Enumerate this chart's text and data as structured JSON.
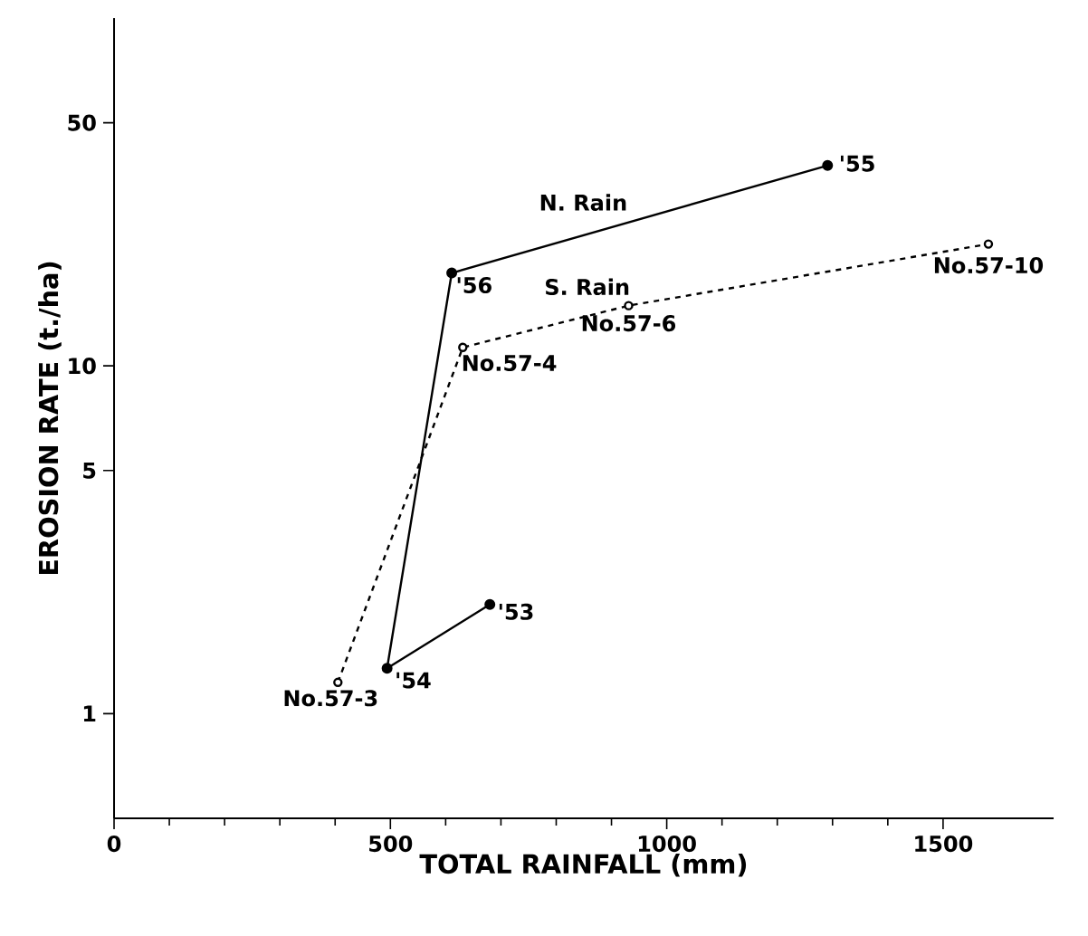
{
  "chart_data": {
    "type": "line",
    "xlabel": "TOTAL RAINFALL (mm)",
    "ylabel": "EROSION RATE (t./ha)",
    "log": "y",
    "xlim": [
      0,
      1700
    ],
    "ylim": [
      0.5,
      100
    ],
    "xticks": [
      0,
      500,
      1000,
      1500
    ],
    "yticks": [
      1,
      5,
      10,
      50
    ],
    "grid": false,
    "legend": false,
    "series": [
      {
        "name": "N. Rain",
        "color": "#000000",
        "marker": "circle",
        "line_style": "solid",
        "x": [
          680,
          494,
          611,
          1291
        ],
        "values": [
          2.06,
          1.35,
          18.5,
          37.7
        ]
      },
      {
        "name": "S. Rain",
        "color": "#000000",
        "marker": "circle",
        "line_style": "dashed",
        "x": [
          405,
          631,
          931,
          1582
        ],
        "values": [
          1.23,
          11.3,
          14.9,
          22.4
        ]
      }
    ],
    "annotations": [
      {
        "text": "'53",
        "x": 680,
        "y": 2.06
      },
      {
        "text": "'54",
        "x": 494,
        "y": 1.35
      },
      {
        "text": "'56",
        "x": 611,
        "y": 18.5
      },
      {
        "text": "'55",
        "x": 1291,
        "y": 37.7
      },
      {
        "text": "No.57-3",
        "x": 405,
        "y": 1.23
      },
      {
        "text": "No.57-4",
        "x": 631,
        "y": 11.3
      },
      {
        "text": "No.57-6",
        "x": 931,
        "y": 14.9
      },
      {
        "text": "No.57-10",
        "x": 1582,
        "y": 22.4
      }
    ]
  }
}
